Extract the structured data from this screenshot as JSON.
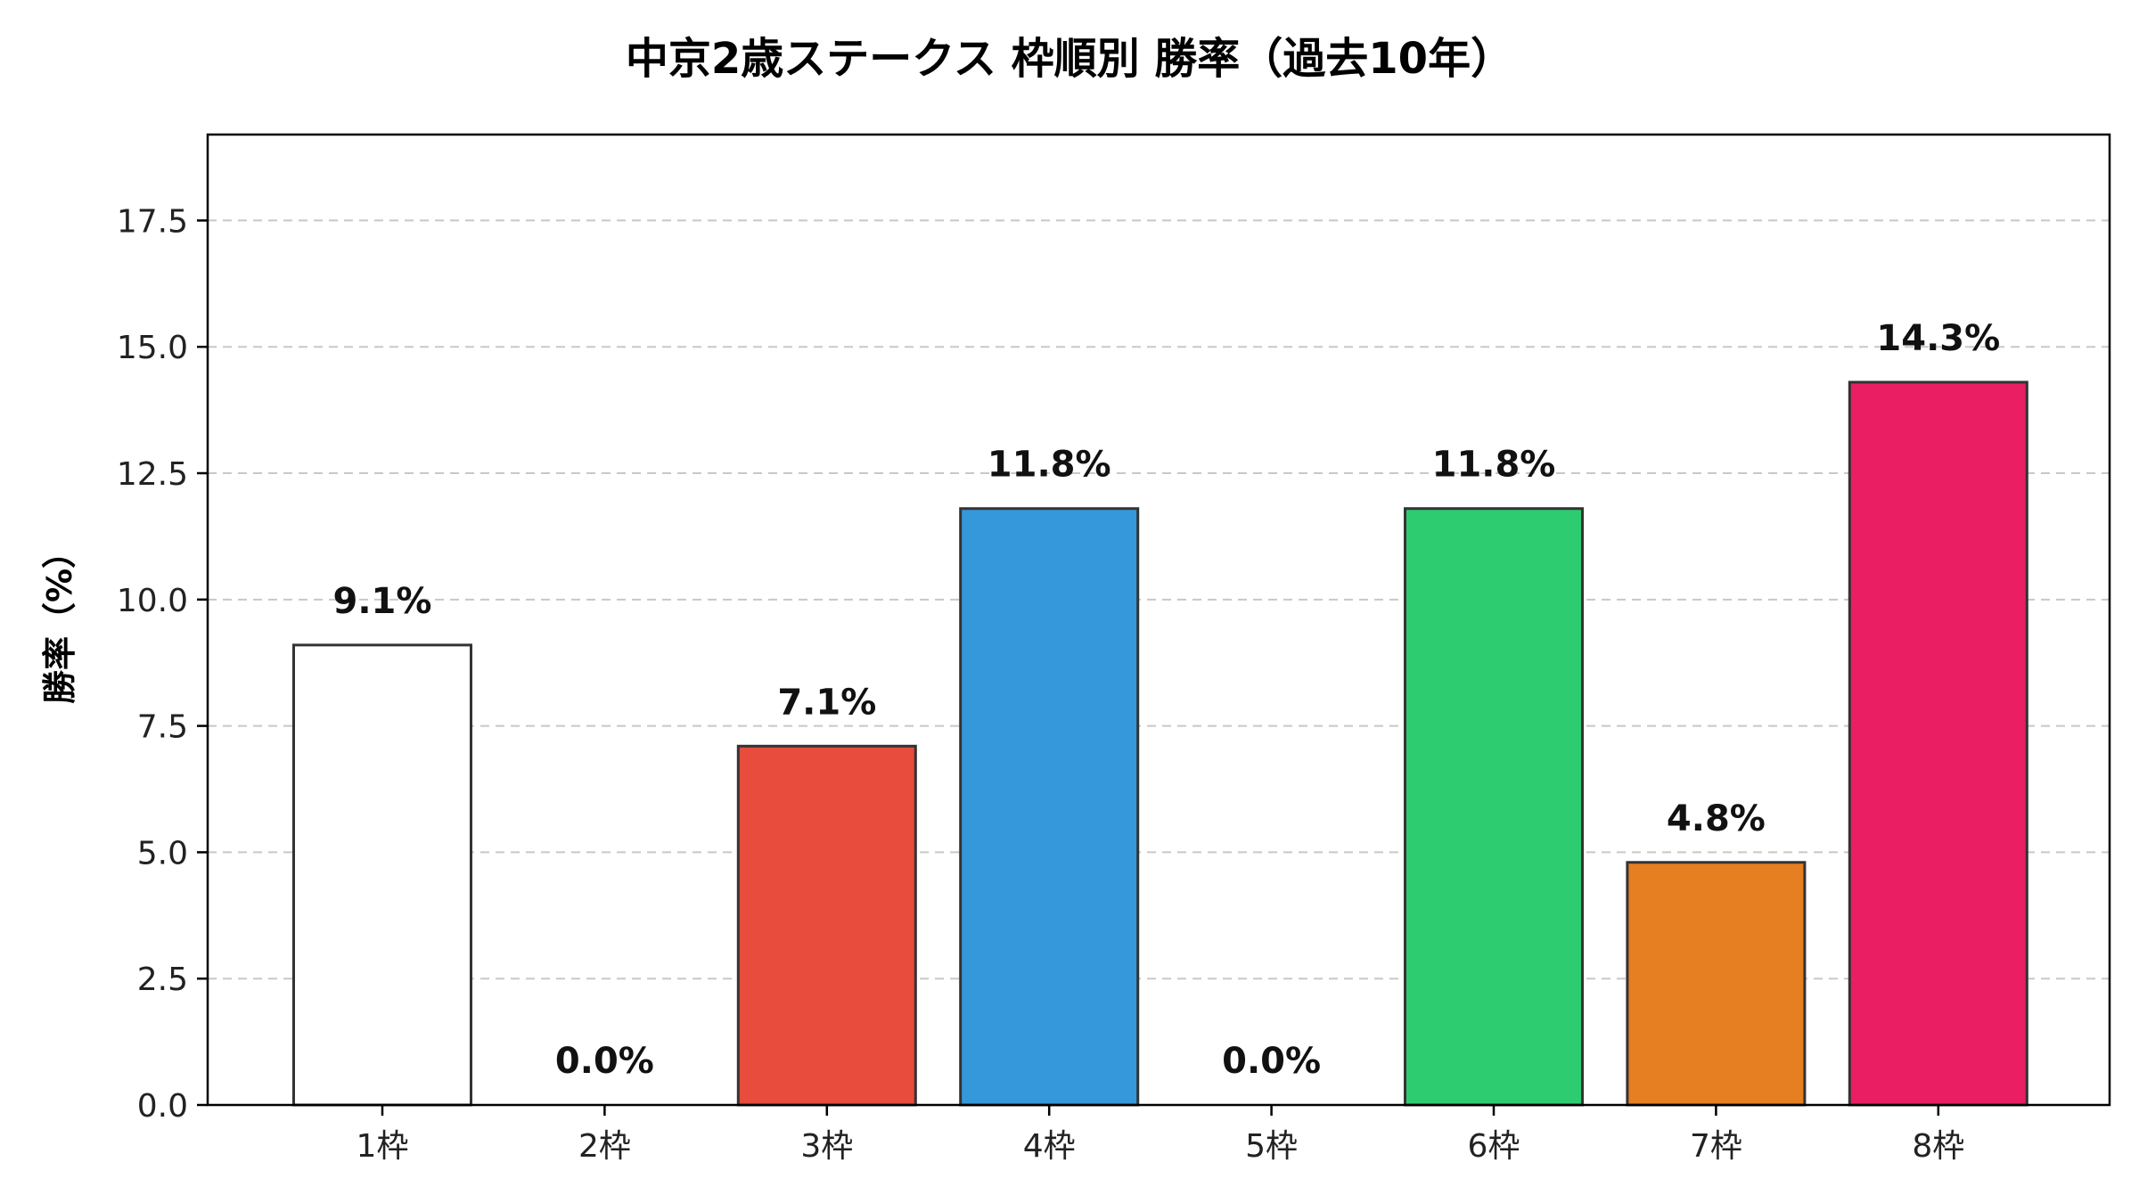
{
  "chart_data": {
    "type": "bar",
    "title": "中京2歳ステークス 枠順別 勝率（過去10年）",
    "xlabel": "",
    "ylabel": "勝率（%）",
    "categories": [
      "1枠",
      "2枠",
      "3枠",
      "4枠",
      "5枠",
      "6枠",
      "7枠",
      "8枠"
    ],
    "values": [
      9.1,
      0.0,
      7.1,
      11.8,
      0.0,
      11.8,
      4.8,
      14.3
    ],
    "value_labels": [
      "9.1%",
      "0.0%",
      "7.1%",
      "11.8%",
      "0.0%",
      "11.8%",
      "4.8%",
      "14.3%"
    ],
    "colors": [
      "#FFFFFF",
      "#222222",
      "#E74C3C",
      "#3498DB",
      "#F1C40F",
      "#2ECC71",
      "#E67E22",
      "#E91E63"
    ],
    "ylim": [
      0,
      19.2
    ],
    "yticks": [
      0.0,
      2.5,
      5.0,
      7.5,
      10.0,
      12.5,
      15.0,
      17.5
    ],
    "ytick_labels": [
      "0.0",
      "2.5",
      "5.0",
      "7.5",
      "10.0",
      "12.5",
      "15.0",
      "17.5"
    ],
    "grid": "y-dashed",
    "bar_edge_color": "#333333"
  }
}
